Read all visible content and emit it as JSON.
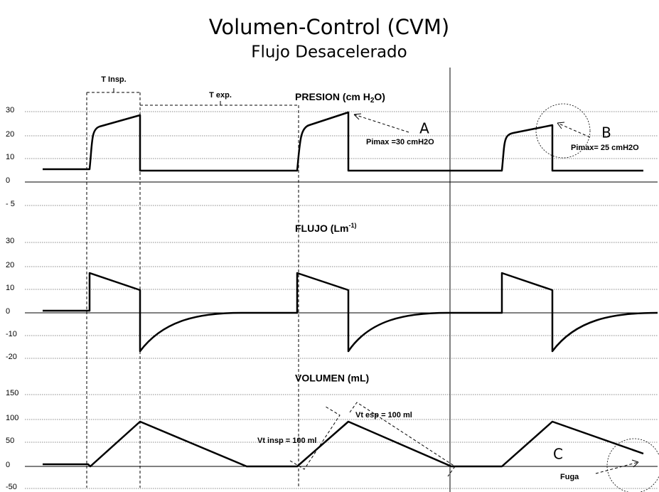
{
  "title": "Volumen-Control (CVM)",
  "subtitle": "Flujo Desacelerado",
  "panels": [
    {
      "label": "PRESION (cm H",
      "label_sub": "2",
      "label_end": "O)",
      "ticks": [
        "30",
        "20",
        "10",
        "0",
        "- 5"
      ]
    },
    {
      "label": "FLUJO (Lm",
      "label_sup": "-1)",
      "label_end": ")",
      "ticks": [
        "30",
        "20",
        "10",
        "0",
        "-10",
        "-20"
      ]
    },
    {
      "label": "VOLUMEN (mL)",
      "ticks": [
        "150",
        "100",
        "50",
        "0",
        "-50"
      ]
    }
  ],
  "intervals": {
    "insp": "T Insp.",
    "exp": "T exp."
  },
  "annotations": {
    "a": "A",
    "a_note": "Pimax =30 cmH2O",
    "b": "B",
    "b_note": "Pimax= 25 cmH2O",
    "vt_insp": "Vt insp = 100 ml",
    "vt_esp": "Vt esp = 100 ml",
    "c": "C",
    "c_note": "Fuga"
  }
}
